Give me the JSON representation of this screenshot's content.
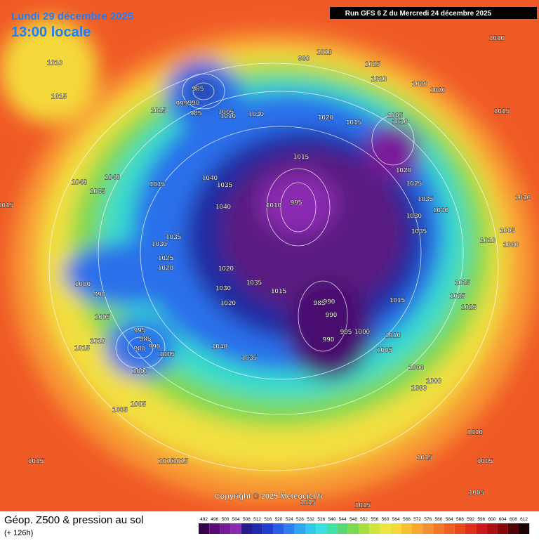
{
  "header": {
    "date": "Lundi 29 décembre 2025",
    "time": "13:00 locale",
    "run": "Run GFS 6 Z du Mercredi 24 décembre 2025"
  },
  "copyright": "Copyright © 2025 Meteociel.fr",
  "footer": {
    "title": "Géop. Z500 & pression au sol",
    "lead": "(+ 126h)"
  },
  "scale": {
    "values": [
      492,
      496,
      500,
      504,
      508,
      512,
      516,
      520,
      524,
      528,
      532,
      536,
      540,
      544,
      548,
      552,
      556,
      560,
      564,
      568,
      572,
      576,
      580,
      584,
      588,
      592,
      596,
      600,
      604,
      608,
      612
    ],
    "colors": [
      "#3a0050",
      "#5a0a78",
      "#7a1a9a",
      "#8a2ab0",
      "#2a1a90",
      "#1e2ab0",
      "#1e3ed0",
      "#2a5ee8",
      "#2e80f0",
      "#30a6f0",
      "#30c8ee",
      "#38e0e0",
      "#40e0a8",
      "#5ad870",
      "#7ed850",
      "#a6e040",
      "#cce63c",
      "#eee640",
      "#f5d83a",
      "#f8c030",
      "#f8a830",
      "#f59030",
      "#f27828",
      "#ee6022",
      "#e84a1e",
      "#e0301a",
      "#d01818",
      "#b00e10",
      "#880808",
      "#500404",
      "#1a0000"
    ]
  },
  "isobars": {
    "labels": [
      1010,
      1015,
      1015,
      985,
      995,
      990,
      985,
      1005,
      1010,
      1030,
      1020,
      1015,
      1025,
      1020,
      1020,
      1020,
      1010,
      1015,
      1010,
      1005,
      1015,
      1020,
      1025,
      1035,
      1030,
      1030,
      1035,
      1010,
      1005,
      1010,
      1000,
      1040,
      1035,
      1040,
      1015,
      1040,
      1035,
      1040,
      1015,
      1035,
      1030,
      1025,
      1020,
      1020,
      1000,
      990,
      1030,
      1035,
      1020,
      1015,
      985,
      990,
      990,
      1015,
      1025,
      1025,
      1025,
      1005,
      1010,
      1015,
      995,
      985,
      980,
      990,
      1005,
      1000,
      1040,
      1035,
      990,
      995,
      1000,
      1010,
      1005,
      1000,
      1000,
      1000,
      1005,
      1005,
      1015,
      1010,
      1015,
      1010,
      1005,
      1005,
      1015,
      1015,
      1015,
      990,
      1010,
      1010,
      995
    ]
  }
}
